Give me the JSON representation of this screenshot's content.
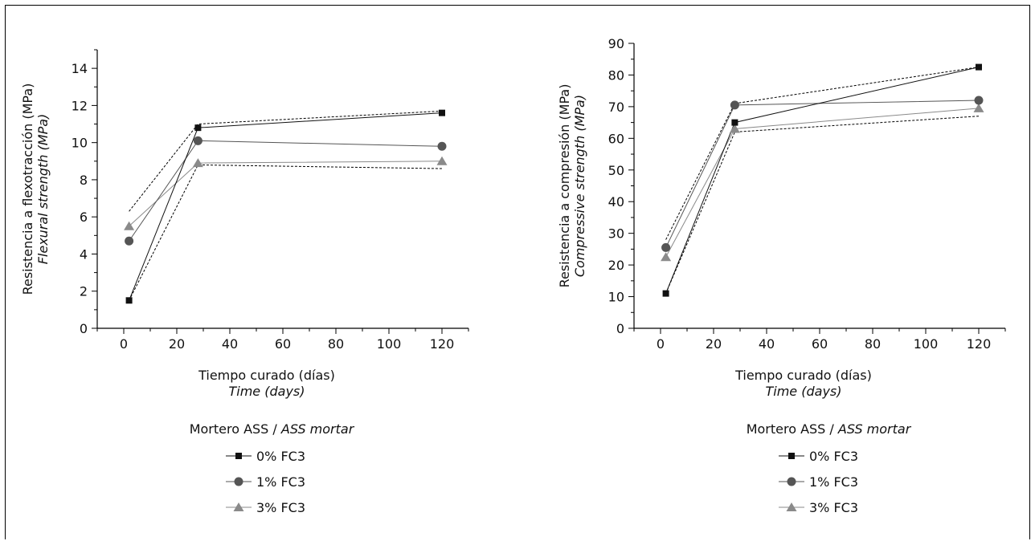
{
  "chart_data": [
    {
      "type": "line",
      "ylabel": "Resistencia a flexotracción (MPa)",
      "ylabel_en": "Flexural strength (MPa)",
      "xlabel": "Tiempo curado (días)",
      "xlabel_en": "Time (days)",
      "xlim": [
        -10,
        130
      ],
      "ylim": [
        0,
        15
      ],
      "xticks": [
        0,
        20,
        40,
        60,
        80,
        100,
        120
      ],
      "yticks": [
        0,
        2,
        4,
        6,
        8,
        10,
        12,
        14
      ],
      "x": [
        2,
        28,
        120
      ],
      "series": [
        {
          "name": "0% FC3",
          "values": [
            1.5,
            10.8,
            11.6
          ],
          "marker": "square",
          "color": "#111111"
        },
        {
          "name": "1% FC3",
          "values": [
            4.7,
            10.1,
            9.8
          ],
          "marker": "circle",
          "color": "#555555"
        },
        {
          "name": "3% FC3",
          "values": [
            5.5,
            8.9,
            9.0
          ],
          "marker": "triangle",
          "color": "#8a8a8a"
        }
      ],
      "envelope_upper": [
        6.3,
        11.0,
        11.7
      ],
      "envelope_lower": [
        1.5,
        8.8,
        8.6
      ],
      "legend_title": "Mortero ASS / ",
      "legend_title_en": "ASS mortar",
      "legend_placement": "below"
    },
    {
      "type": "line",
      "ylabel": "Resistencia a compresión (MPa)",
      "ylabel_en": "Compressive strength (MPa)",
      "xlabel": "Tiempo curado (días)",
      "xlabel_en": "Time (days)",
      "xlim": [
        -10,
        130
      ],
      "ylim": [
        0,
        90
      ],
      "xticks": [
        0,
        20,
        40,
        60,
        80,
        100,
        120
      ],
      "yticks": [
        0,
        10,
        20,
        30,
        40,
        50,
        60,
        70,
        80,
        90
      ],
      "x": [
        2,
        28,
        120
      ],
      "series": [
        {
          "name": "0% FC3",
          "values": [
            11,
            65,
            82.5
          ],
          "marker": "square",
          "color": "#111111"
        },
        {
          "name": "1% FC3",
          "values": [
            25.5,
            70.5,
            72
          ],
          "marker": "circle",
          "color": "#555555"
        },
        {
          "name": "3% FC3",
          "values": [
            22.5,
            63,
            69.5
          ],
          "marker": "triangle",
          "color": "#8a8a8a"
        }
      ],
      "envelope_upper": [
        28,
        71,
        82.5
      ],
      "envelope_lower": [
        11,
        62,
        67
      ],
      "legend_title": "Mortero ASS / ",
      "legend_title_en": "ASS mortar",
      "legend_placement": "below"
    }
  ]
}
